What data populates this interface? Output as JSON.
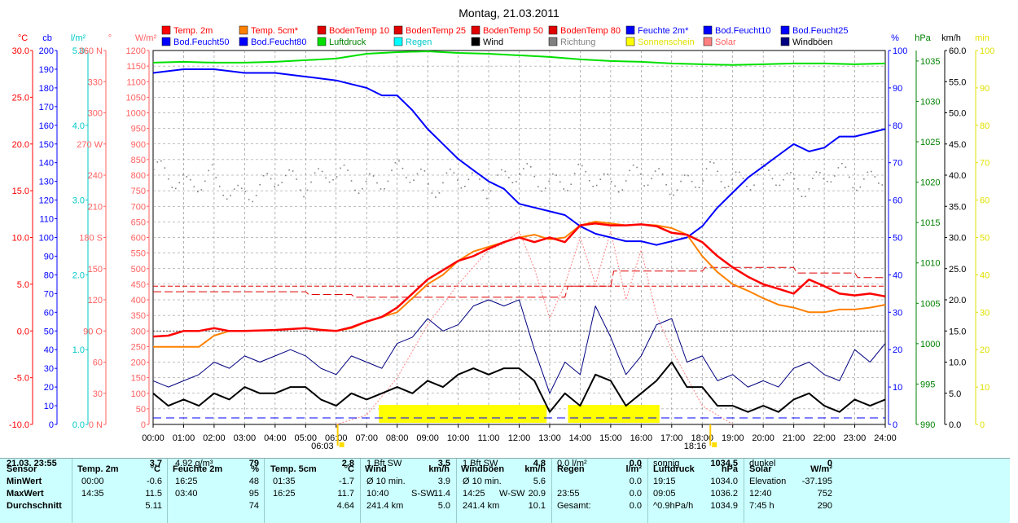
{
  "title": "Montag, 21.03.2011",
  "colors": {
    "temp2m": "#ff0000",
    "temp5cm": "#ff8000",
    "bodentemp": "#e00000",
    "feuchte": "#0000ff",
    "luftdruck": "#00e000",
    "regen": "#00ffff",
    "wind": "#000000",
    "richtung": "#808080",
    "sonne": "#ffff00",
    "solar": "#ff8080",
    "boeen": "#000080",
    "panel": "#ccffff"
  },
  "legend": [
    {
      "label": "Temp. 2m",
      "color": "#ff0000",
      "label_color": "#ff0000"
    },
    {
      "label": "Temp. 5cm*",
      "color": "#ff8000",
      "label_color": "#ff0000"
    },
    {
      "label": "BodenTemp 10",
      "color": "#e00000",
      "label_color": "#ff0000"
    },
    {
      "label": "BodenTemp 25",
      "color": "#e00000",
      "label_color": "#ff0000"
    },
    {
      "label": "BodenTemp 50",
      "color": "#e00000",
      "label_color": "#ff0000"
    },
    {
      "label": "BodenTemp 80",
      "color": "#e00000",
      "label_color": "#ff0000"
    },
    {
      "label": "Feuchte 2m*",
      "color": "#0000ff",
      "label_color": "#0000ff"
    },
    {
      "label": "Bod.Feucht10",
      "color": "#0000ff",
      "label_color": "#0000ff"
    },
    {
      "label": "Bod.Feucht25",
      "color": "#0000ff",
      "label_color": "#0000ff"
    },
    {
      "label": "Bod.Feucht50",
      "color": "#0000ff",
      "label_color": "#0000ff"
    },
    {
      "label": "Bod.Feucht80",
      "color": "#0000ff",
      "label_color": "#0000ff"
    },
    {
      "label": "Luftdruck",
      "color": "#00e000",
      "label_color": "#008000"
    },
    {
      "label": "Regen",
      "color": "#00ffff",
      "label_color": "#00c8c8"
    },
    {
      "label": "Wind",
      "color": "#000000",
      "label_color": "#000000"
    },
    {
      "label": "Richtung",
      "color": "#808080",
      "label_color": "#808080"
    },
    {
      "label": "Sonnenschein",
      "color": "#ffff00",
      "label_color": "#e0e000"
    },
    {
      "label": "Solar",
      "color": "#ff8080",
      "label_color": "#ff6060"
    },
    {
      "label": "Windböen",
      "color": "#000080",
      "label_color": "#000000"
    }
  ],
  "axes": {
    "left": [
      {
        "unit": "°C",
        "color": "#ff0000",
        "ticks": [
          "30.0",
          "25.0",
          "20.0",
          "15.0",
          "10.0",
          "5.0",
          "0.0",
          "-5.0",
          "-10.0"
        ]
      },
      {
        "unit": "cb",
        "color": "#0000ff",
        "ticks": [
          "200",
          "190",
          "180",
          "170",
          "160",
          "150",
          "140",
          "130",
          "120",
          "110",
          "100",
          "90",
          "80",
          "70",
          "60",
          "50",
          "40",
          "30",
          "20",
          "10",
          "0"
        ]
      },
      {
        "unit": "l/m²",
        "color": "#00c8c8",
        "ticks": [
          "5.0",
          "4.0",
          "3.0",
          "2.0",
          "1.0",
          "0.0"
        ]
      },
      {
        "unit": "°",
        "color": "#ff6060",
        "ticks": [
          "360 N",
          "330",
          "300",
          "270 W",
          "240",
          "210",
          "180 S",
          "150",
          "120",
          "90 O",
          "60",
          "30",
          "0 N"
        ]
      },
      {
        "unit": "W/m²",
        "color": "#ff6060",
        "ticks": [
          "1200",
          "1150",
          "1100",
          "1050",
          "1000",
          "950",
          "900",
          "850",
          "800",
          "750",
          "700",
          "650",
          "600",
          "550",
          "500",
          "450",
          "400",
          "350",
          "300",
          "250",
          "200",
          "150",
          "100",
          "50",
          "0"
        ]
      }
    ],
    "right": [
      {
        "unit": "%",
        "color": "#0000ff",
        "ticks": [
          "100",
          "90",
          "80",
          "70",
          "60",
          "50",
          "40",
          "30",
          "20",
          "10",
          "0"
        ]
      },
      {
        "unit": "hPa",
        "color": "#008000",
        "ticks": [
          "1035",
          "1030",
          "1025",
          "1020",
          "1015",
          "1010",
          "1005",
          "1000",
          "995",
          "990"
        ]
      },
      {
        "unit": "km/h",
        "color": "#000000",
        "ticks": [
          "60.0",
          "55.0",
          "50.0",
          "45.0",
          "40.0",
          "35.0",
          "30.0",
          "25.0",
          "20.0",
          "15.0",
          "10.0",
          "5.0",
          "0.0"
        ]
      },
      {
        "unit": "min",
        "color": "#e0e000",
        "ticks": [
          "100",
          "90",
          "80",
          "70",
          "60",
          "50",
          "40",
          "30",
          "20",
          "10",
          "0"
        ]
      }
    ],
    "x_ticks": [
      "00:00",
      "01:00",
      "02:00",
      "03:00",
      "04:00",
      "05:00",
      "06:00",
      "07:00",
      "08:00",
      "09:00",
      "10:00",
      "11:00",
      "12:00",
      "13:00",
      "14:00",
      "15:00",
      "16:00",
      "17:00",
      "18:00",
      "19:00",
      "20:00",
      "21:00",
      "22:00",
      "23:00",
      "24:00"
    ],
    "sunrise": "06:03",
    "sunset": "18:16"
  },
  "chart_data": {
    "type": "line",
    "title": "Montag, 21.03.2011",
    "x_unit": "hour",
    "xlim": [
      0,
      24
    ],
    "grid": true,
    "series": [
      {
        "name": "Temp. 2m",
        "axis": "°C",
        "x": [
          0,
          0.5,
          1,
          1.5,
          2,
          2.5,
          3,
          4,
          5,
          5.5,
          6,
          6.5,
          7,
          7.5,
          8,
          8.5,
          9,
          9.5,
          10,
          10.5,
          11,
          11.5,
          12,
          12.5,
          13,
          13.5,
          14,
          14.5,
          15,
          15.5,
          16,
          16.5,
          17,
          17.5,
          18,
          18.5,
          19,
          19.5,
          20,
          20.5,
          21,
          21.5,
          22,
          22.5,
          23,
          23.5,
          24
        ],
        "y": [
          -0.6,
          -0.5,
          0,
          0,
          0.3,
          0,
          0,
          0.1,
          0.3,
          0.1,
          0,
          0.4,
          1,
          1.5,
          2.5,
          4,
          5.5,
          6.5,
          7.5,
          8,
          8.8,
          9.5,
          10,
          9.5,
          10,
          9.5,
          11.3,
          11.5,
          11.3,
          11.3,
          11.4,
          11.2,
          10.5,
          10.3,
          9.5,
          8,
          6.8,
          5.8,
          5,
          4.5,
          4,
          5.5,
          4.8,
          4,
          3.8,
          4,
          3.7
        ]
      },
      {
        "name": "Temp. 5cm*",
        "axis": "°C",
        "x": [
          0,
          1,
          1.5,
          2,
          2.5,
          3,
          4,
          5,
          6,
          6.5,
          7,
          8,
          8.5,
          9,
          9.5,
          10,
          10.5,
          11,
          11.5,
          12,
          12.5,
          13,
          13.5,
          14,
          14.5,
          15,
          15.5,
          16,
          16.5,
          17,
          17.5,
          18,
          18.5,
          19,
          19.5,
          20,
          20.5,
          21,
          21.5,
          22,
          22.5,
          23,
          23.5,
          24
        ],
        "y": [
          -1.7,
          -1.7,
          -1.7,
          -0.5,
          0,
          0,
          0.1,
          0.3,
          0,
          0.3,
          1,
          2,
          3.5,
          5,
          6,
          7.5,
          8.5,
          9,
          9.5,
          10,
          10.3,
          9.8,
          10,
          11.3,
          11.7,
          11.5,
          11.3,
          11.4,
          11.3,
          11,
          10.3,
          8,
          6.3,
          5,
          4.3,
          3.5,
          2.8,
          2.5,
          2,
          2,
          2.3,
          2.3,
          2.5,
          2.8
        ]
      },
      {
        "name": "Feuchte 2m*",
        "axis": "%",
        "x": [
          0,
          1,
          2,
          3,
          4,
          5,
          6,
          6.5,
          7,
          7.5,
          8,
          8.5,
          9,
          9.5,
          10,
          10.5,
          11,
          11.5,
          12,
          12.5,
          13,
          13.5,
          14,
          14.5,
          15,
          15.5,
          16,
          16.5,
          17,
          17.5,
          18,
          18.5,
          19,
          19.5,
          20,
          20.5,
          21,
          21.5,
          22,
          22.5,
          23,
          23.5,
          24
        ],
        "y": [
          94,
          95,
          95,
          94,
          94,
          93,
          92,
          91,
          90,
          88,
          88,
          84,
          79,
          75,
          71,
          68,
          65,
          63,
          59,
          58,
          57,
          56,
          53,
          51,
          50,
          49,
          49,
          48,
          49,
          50,
          53,
          58,
          62,
          66,
          69,
          72,
          75,
          73,
          74,
          77,
          77,
          78,
          79
        ]
      },
      {
        "name": "Luftdruck",
        "axis": "hPa",
        "x": [
          0,
          1,
          2,
          3,
          4,
          5,
          6,
          7,
          8,
          9,
          10,
          11,
          12,
          13,
          14,
          15,
          16,
          17,
          18,
          19,
          20,
          21,
          22,
          23,
          24
        ],
        "y": [
          1034.8,
          1034.9,
          1034.8,
          1034.8,
          1034.9,
          1035.1,
          1035.3,
          1035.9,
          1036.1,
          1036.2,
          1036.0,
          1035.9,
          1035.7,
          1035.5,
          1035.2,
          1035.0,
          1034.9,
          1034.7,
          1034.6,
          1034.5,
          1034.6,
          1034.7,
          1034.7,
          1034.6,
          1034.7
        ]
      },
      {
        "name": "Wind",
        "axis": "km/h",
        "x": [
          0,
          0.5,
          1,
          1.5,
          2,
          2.5,
          3,
          3.5,
          4,
          4.5,
          5,
          5.5,
          6,
          6.5,
          7,
          7.5,
          8,
          8.5,
          9,
          9.5,
          10,
          10.5,
          11,
          11.5,
          12,
          12.5,
          13,
          13.5,
          14,
          14.5,
          15,
          15.5,
          16,
          16.5,
          17,
          17.5,
          18,
          18.5,
          19,
          19.5,
          20,
          20.5,
          21,
          21.5,
          22,
          22.5,
          23,
          23.5,
          24
        ],
        "y": [
          5,
          3,
          4,
          3,
          5,
          4,
          6,
          5,
          5,
          6,
          6,
          4,
          3,
          5,
          4,
          5,
          6,
          5,
          7,
          6,
          8,
          9,
          8,
          9,
          9,
          7,
          2,
          5,
          3,
          8,
          7,
          3,
          5,
          7,
          10,
          6,
          6,
          3,
          3,
          2,
          3,
          2,
          4,
          5,
          3,
          2,
          4,
          3,
          4
        ]
      },
      {
        "name": "Windböen",
        "axis": "km/h",
        "x": [
          0,
          0.5,
          1,
          1.5,
          2,
          2.5,
          3,
          3.5,
          4,
          4.5,
          5,
          5.5,
          6,
          6.5,
          7,
          7.5,
          8,
          8.5,
          9,
          9.5,
          10,
          10.5,
          11,
          11.5,
          12,
          12.5,
          13,
          13.5,
          14,
          14.5,
          15,
          15.5,
          16,
          16.5,
          17,
          17.5,
          18,
          18.5,
          19,
          19.5,
          20,
          20.5,
          21,
          21.5,
          22,
          22.5,
          23,
          23.5,
          24
        ],
        "y": [
          7,
          6,
          7,
          8,
          10,
          9,
          11,
          10,
          11,
          12,
          11,
          9,
          8,
          11,
          10,
          9,
          13,
          14,
          17,
          15,
          16,
          19,
          20,
          19,
          20,
          12,
          5,
          10,
          8,
          19,
          14,
          8,
          11,
          16,
          17,
          10,
          11,
          7,
          8,
          6,
          7,
          6,
          9,
          10,
          8,
          7,
          12,
          10,
          13
        ]
      },
      {
        "name": "Solar",
        "axis": "W/m²",
        "x": [
          6,
          7,
          8,
          9,
          10,
          11,
          11.5,
          12,
          12.5,
          13,
          13.5,
          14,
          14.5,
          15,
          15.5,
          16,
          16.5,
          17,
          18,
          19
        ],
        "y": [
          0,
          30,
          150,
          320,
          450,
          560,
          580,
          620,
          500,
          340,
          450,
          600,
          450,
          620,
          400,
          560,
          350,
          240,
          60,
          0
        ]
      },
      {
        "name": "Richtung",
        "axis": "°",
        "x": [
          0,
          1,
          2,
          3,
          4,
          5,
          6,
          7,
          8,
          9,
          10,
          11,
          12,
          13,
          14,
          15,
          16,
          17,
          18,
          19,
          20,
          21,
          22,
          23,
          24
        ],
        "y": [
          240,
          235,
          225,
          230,
          235,
          240,
          235,
          238,
          240,
          235,
          232,
          240,
          236,
          238,
          235,
          240,
          234,
          236,
          238,
          240,
          235,
          235,
          238,
          240,
          236
        ]
      },
      {
        "name": "BodenTemp 10",
        "axis": "°C",
        "x": [
          0,
          5,
          5.1,
          6.5,
          6.6,
          13.5,
          13.6,
          15,
          15.1,
          18,
          18.1,
          21,
          21.1,
          23,
          23.1,
          24
        ],
        "y": [
          4.2,
          4.2,
          3.9,
          3.9,
          3.6,
          3.6,
          4.8,
          4.8,
          6.4,
          6.4,
          6.8,
          6.8,
          6.2,
          6.2,
          5.7,
          5.7
        ]
      },
      {
        "name": "BodenTemp 25",
        "axis": "°C",
        "x": [
          0,
          24
        ],
        "y": [
          4.8,
          4.8
        ]
      },
      {
        "name": "Sonnenschein",
        "axis": "min",
        "x": [
          7.4,
          12.9,
          13.6,
          16.6
        ],
        "y": [
          1,
          1,
          1,
          1
        ]
      }
    ]
  },
  "sensor_table": {
    "header": [
      "Sensor",
      "Temp. 2m",
      "°C",
      "Feuchte 2m",
      "%",
      "Temp. 5cm",
      "°C",
      "Wind",
      "km/h",
      "Windböen",
      "km/h",
      "Regen",
      "l/m²",
      "Luftdruck",
      "hPa",
      "Solar",
      "W/m²"
    ],
    "row_labels": [
      "MinWert",
      "MaxWert",
      "Durchschnitt",
      "21.03. 23:55"
    ],
    "temp2m": [
      [
        "00:00",
        "-0.6"
      ],
      [
        "14:35",
        "11.5"
      ],
      [
        "",
        "5.11"
      ],
      [
        "",
        "3.7"
      ]
    ],
    "feuchte": [
      [
        "16:25",
        "48"
      ],
      [
        "03:40",
        "95"
      ],
      [
        "",
        "74"
      ],
      [
        "4.92 g/m³",
        "79"
      ]
    ],
    "temp5cm": [
      [
        "01:35",
        "-1.7"
      ],
      [
        "16:25",
        "11.7"
      ],
      [
        "",
        "4.64"
      ],
      [
        "",
        "2.8"
      ]
    ],
    "wind": [
      [
        "Ø 10 min.",
        "",
        "3.9"
      ],
      [
        "10:40",
        "S-SW",
        "11.4"
      ],
      [
        "241.4 km",
        "",
        "5.0"
      ],
      [
        "1 Bft SW",
        "",
        "3.5"
      ]
    ],
    "boeen": [
      [
        "Ø 10 min.",
        "",
        "5.6"
      ],
      [
        "14:25",
        "W-SW",
        "20.9"
      ],
      [
        "241.4 km",
        "",
        "10.1"
      ],
      [
        "1 Bft SW",
        "",
        "4.8"
      ]
    ],
    "regen": [
      [
        "",
        "0.0"
      ],
      [
        "23:55",
        "0.0"
      ],
      [
        "Gesamt:",
        "0.0"
      ],
      [
        "0.0 l/m²",
        "0.0"
      ]
    ],
    "luftdruck": [
      [
        "19:15",
        "1034.0"
      ],
      [
        "09:05",
        "1036.2"
      ],
      [
        "^0.9hPa/h",
        "1034.9"
      ],
      [
        "sonnig",
        "1034.5"
      ]
    ],
    "solar": [
      [
        "Elevation",
        "-37.195"
      ],
      [
        "12:40",
        "752"
      ],
      [
        "7:45 h",
        "290"
      ],
      [
        "dunkel",
        "0"
      ]
    ]
  }
}
